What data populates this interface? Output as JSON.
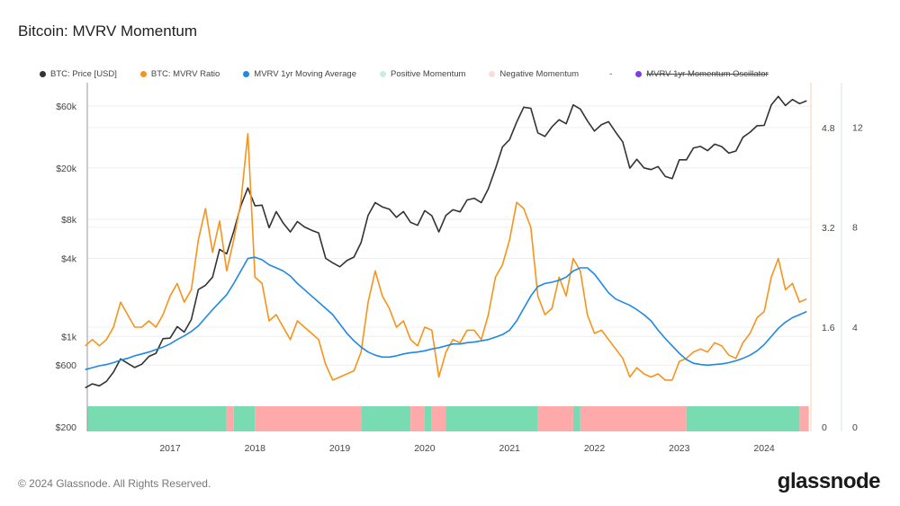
{
  "title": "Bitcoin: MVRV Momentum",
  "footer": "© 2024 Glassnode. All Rights Reserved.",
  "logo": "glassnode",
  "legend": [
    {
      "label": "BTC: Price [USD]",
      "color": "#333333"
    },
    {
      "label": "BTC: MVRV Ratio",
      "color": "#f7931a"
    },
    {
      "label": "MVRV 1yr Moving Average",
      "color": "#1e88e5"
    },
    {
      "label": "Positive Momentum",
      "color": "#c8eedd"
    },
    {
      "label": "Negative Momentum",
      "color": "#fcdcdc"
    },
    {
      "label": "-",
      "color": ""
    },
    {
      "label": "MVRV 1yr Momentum Oscillator",
      "color": "#7b3fe4",
      "disabled": true
    }
  ],
  "chart_data": {
    "type": "line",
    "x_start_month": "2016-01",
    "x_interval": "monthly",
    "x_ticks": [
      "2017",
      "2018",
      "2019",
      "2020",
      "2021",
      "2022",
      "2023",
      "2024"
    ],
    "y_left": {
      "scale": "log",
      "ticks": [
        "$200",
        "$600",
        "$1k",
        "$4k",
        "$8k",
        "$20k",
        "$60k"
      ],
      "tick_values": [
        200,
        600,
        1000,
        4000,
        8000,
        20000,
        60000
      ]
    },
    "y_right": {
      "ticks": [
        "0",
        "1.6",
        "3.2",
        "4.8"
      ],
      "tick_values": [
        0,
        1.6,
        3.2,
        4.8
      ]
    },
    "y_right2": {
      "ticks": [
        "0",
        "4",
        "8",
        "12"
      ],
      "tick_values": [
        0,
        4,
        8,
        12
      ]
    },
    "grid": true,
    "legend_position": "top",
    "series": [
      {
        "name": "BTC: Price [USD]",
        "axis": "left",
        "color": "#333333",
        "values": [
          400,
          430,
          415,
          450,
          530,
          670,
          620,
          575,
          610,
          700,
          740,
          960,
          970,
          1190,
          1080,
          1350,
          2300,
          2480,
          2870,
          4700,
          4340,
          6470,
          10200,
          14000,
          10200,
          10300,
          6900,
          9200,
          7500,
          6400,
          7700,
          7000,
          6600,
          6300,
          4000,
          3700,
          3450,
          3850,
          4100,
          5300,
          8600,
          10800,
          10000,
          9600,
          8300,
          9200,
          7600,
          7200,
          9350,
          8550,
          6400,
          8600,
          9500,
          9150,
          11300,
          11650,
          10800,
          13800,
          19700,
          29000,
          33100,
          45200,
          58800,
          57700,
          37300,
          35000,
          41500,
          47100,
          43800,
          61300,
          57000,
          46300,
          38500,
          43200,
          45500,
          37700,
          31800,
          19900,
          23300,
          20000,
          19400,
          20500,
          17200,
          16500,
          23100,
          23100,
          28500,
          29300,
          27200,
          30500,
          29200,
          26000,
          27000,
          34500,
          37700,
          42300,
          42600,
          61200,
          71300,
          60600,
          67500,
          62700,
          66000
        ]
      },
      {
        "name": "BTC: MVRV Ratio",
        "axis": "right",
        "color": "#f7931a",
        "values": [
          1.3,
          1.4,
          1.3,
          1.4,
          1.6,
          2.0,
          1.8,
          1.6,
          1.6,
          1.7,
          1.6,
          1.8,
          2.1,
          2.3,
          2.0,
          2.2,
          3.0,
          3.5,
          2.8,
          3.3,
          2.5,
          3.0,
          3.6,
          4.7,
          2.4,
          2.3,
          1.7,
          1.8,
          1.6,
          1.4,
          1.7,
          1.6,
          1.5,
          1.4,
          1.0,
          0.75,
          0.8,
          0.85,
          0.9,
          1.2,
          2.0,
          2.5,
          2.1,
          1.9,
          1.6,
          1.7,
          1.4,
          1.3,
          1.6,
          1.55,
          0.8,
          1.2,
          1.4,
          1.35,
          1.55,
          1.55,
          1.4,
          1.8,
          2.4,
          2.6,
          3.0,
          3.6,
          3.5,
          3.2,
          2.1,
          1.8,
          1.9,
          2.4,
          2.1,
          2.7,
          2.5,
          1.8,
          1.5,
          1.55,
          1.4,
          1.25,
          1.1,
          0.8,
          0.95,
          0.85,
          0.8,
          0.85,
          0.75,
          0.75,
          1.05,
          1.1,
          1.2,
          1.25,
          1.2,
          1.35,
          1.3,
          1.15,
          1.1,
          1.35,
          1.5,
          1.75,
          1.85,
          2.4,
          2.7,
          2.2,
          2.3,
          2.0,
          2.05
        ]
      },
      {
        "name": "MVRV 1yr Moving Average",
        "axis": "right",
        "color": "#1e88e5",
        "values": [
          0.92,
          0.95,
          0.98,
          1.0,
          1.03,
          1.07,
          1.1,
          1.14,
          1.17,
          1.2,
          1.24,
          1.28,
          1.33,
          1.4,
          1.46,
          1.53,
          1.62,
          1.75,
          1.88,
          2.0,
          2.12,
          2.3,
          2.5,
          2.7,
          2.72,
          2.68,
          2.6,
          2.55,
          2.5,
          2.42,
          2.3,
          2.2,
          2.1,
          2.0,
          1.9,
          1.8,
          1.65,
          1.5,
          1.38,
          1.28,
          1.2,
          1.15,
          1.12,
          1.12,
          1.14,
          1.17,
          1.19,
          1.2,
          1.22,
          1.25,
          1.27,
          1.3,
          1.33,
          1.33,
          1.35,
          1.36,
          1.38,
          1.4,
          1.44,
          1.48,
          1.55,
          1.7,
          1.9,
          2.1,
          2.25,
          2.3,
          2.32,
          2.35,
          2.4,
          2.5,
          2.55,
          2.55,
          2.45,
          2.3,
          2.15,
          2.05,
          2.0,
          1.95,
          1.88,
          1.8,
          1.7,
          1.55,
          1.42,
          1.3,
          1.18,
          1.08,
          1.02,
          1.0,
          0.99,
          1.0,
          1.01,
          1.03,
          1.06,
          1.1,
          1.15,
          1.22,
          1.32,
          1.45,
          1.58,
          1.68,
          1.75,
          1.8,
          1.85
        ]
      }
    ],
    "momentum": [
      {
        "start": "2016-01",
        "end": "2017-09",
        "state": "positive"
      },
      {
        "start": "2017-09",
        "end": "2017-10",
        "state": "negative"
      },
      {
        "start": "2017-10",
        "end": "2018-01",
        "state": "positive"
      },
      {
        "start": "2018-01",
        "end": "2019-04",
        "state": "negative"
      },
      {
        "start": "2019-04",
        "end": "2019-11",
        "state": "positive"
      },
      {
        "start": "2019-11",
        "end": "2020-01",
        "state": "negative"
      },
      {
        "start": "2020-01",
        "end": "2020-02",
        "state": "positive"
      },
      {
        "start": "2020-02",
        "end": "2020-04",
        "state": "negative"
      },
      {
        "start": "2020-04",
        "end": "2021-05",
        "state": "positive"
      },
      {
        "start": "2021-05",
        "end": "2021-10",
        "state": "negative"
      },
      {
        "start": "2021-10",
        "end": "2021-11",
        "state": "positive"
      },
      {
        "start": "2021-11",
        "end": "2023-02",
        "state": "negative"
      },
      {
        "start": "2023-02",
        "end": "2024-06",
        "state": "positive"
      },
      {
        "start": "2024-06",
        "end": "2024-07",
        "state": "negative"
      }
    ]
  }
}
